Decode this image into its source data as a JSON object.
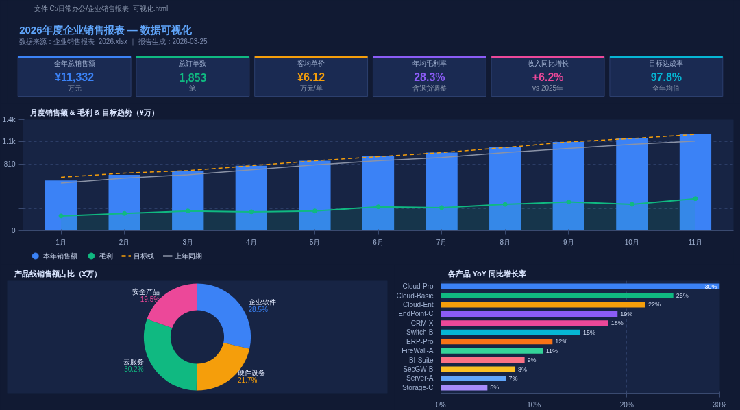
{
  "chart_data": [
    {
      "type": "other",
      "title": "2026年度企业销售报表 — 数据可视化",
      "subtitle": "数据来源：企业销售报表_2026.xlsx ｜ 报告生成：2026-03-25",
      "colors": [
        "#3b82f6",
        "#10b981",
        "#f59e0b",
        "#8b5cf6",
        "#ec4899",
        "#06b6d4"
      ],
      "annotations": [
        "文件  C:/日常办公/企业销售报表_可视化.html",
        "全年总销售额",
        "¥11,332",
        "万元",
        "总订单数",
        "1,853",
        "笔",
        "客均单价",
        "¥6.12",
        "万元/单",
        "年均毛利率",
        "28.3%",
        "含退货调整",
        "收入同比增长",
        "+6.2%",
        "vs 2025年",
        "目标达成率",
        "97.8%",
        "全年均值"
      ]
    },
    {
      "type": "bar",
      "title": "月度销售额 & 毛利 & 目标趋势（¥万）",
      "categories": [
        "1月",
        "2月",
        "3月",
        "4月",
        "5月",
        "6月",
        "7月",
        "8月",
        "9月",
        "10月",
        "11月"
      ],
      "ylim": [
        0,
        1350
      ],
      "yticks": [
        {
          "value": 0,
          "label": "0"
        },
        {
          "value": 270,
          "label": null
        },
        {
          "value": 540,
          "label": null
        },
        {
          "value": 810,
          "label": "810"
        },
        {
          "value": 1080,
          "label": "1.1k"
        },
        {
          "value": 1350,
          "label": "1.4k"
        }
      ],
      "grid": "y",
      "legend": "bottom left",
      "series": [
        {
          "name": "本年销售额",
          "type": "bar",
          "color": "#3b82f6",
          "values": [
            610,
            680,
            720,
            790,
            850,
            910,
            950,
            1020,
            1080,
            1120,
            1180
          ]
        },
        {
          "name": "毛利",
          "type": "area",
          "color": "#10b981",
          "marker": "circle",
          "values": [
            180,
            210,
            240,
            230,
            240,
            290,
            280,
            320,
            350,
            320,
            390
          ]
        },
        {
          "name": "目标线",
          "type": "line",
          "color": "#f59e0b",
          "line_style": "dashed",
          "values": [
            650,
            700,
            730,
            790,
            850,
            900,
            950,
            1010,
            1080,
            1120,
            1170
          ]
        },
        {
          "name": "上年同期",
          "type": "line",
          "color": "#8b93a7",
          "values": [
            580,
            640,
            680,
            740,
            800,
            850,
            890,
            950,
            1000,
            1050,
            1090
          ]
        }
      ]
    },
    {
      "type": "donut",
      "title": "产品线销售额占比（¥万）",
      "categories": [
        "企业软件",
        "硬件设备",
        "云服务",
        "安全产品"
      ],
      "values": [
        28.5,
        21.7,
        30.2,
        19.5
      ],
      "value_labels": [
        "28.5%",
        "21.7%",
        "30.2%",
        "19.5%"
      ],
      "colors": [
        "#3b82f6",
        "#f59e0b",
        "#10b981",
        "#ec4899"
      ]
    },
    {
      "type": "bar",
      "orientation": "horizontal",
      "title": "各产品 YoY 同比增长率",
      "categories": [
        "Cloud-Pro",
        "Cloud-Basic",
        "Cloud-Ent",
        "EndPoint-C",
        "CRM-X",
        "Switch-B",
        "ERP-Pro",
        "FireWall-A",
        "BI-Suite",
        "SecGW-B",
        "Server-A",
        "Storage-C"
      ],
      "values": [
        30,
        25,
        22,
        19,
        18,
        15,
        12,
        11,
        9,
        8,
        7,
        5
      ],
      "value_labels": [
        "30%",
        "25%",
        "22%",
        "19%",
        "18%",
        "15%",
        "12%",
        "11%",
        "9%",
        "8%",
        "7%",
        "5%"
      ],
      "colors": [
        "#3b82f6",
        "#10b981",
        "#f59e0b",
        "#8b5cf6",
        "#ec4899",
        "#06b6d4",
        "#f97316",
        "#34d399",
        "#fb7185",
        "#fbbf24",
        "#60a5fa",
        "#a78bfa"
      ],
      "xlim": [
        0,
        30
      ],
      "xticks": [
        {
          "value": 0,
          "label": "0%"
        },
        {
          "value": 10,
          "label": "10%"
        },
        {
          "value": 20,
          "label": "20%"
        },
        {
          "value": 30,
          "label": "30%"
        }
      ],
      "grid": "x"
    }
  ]
}
